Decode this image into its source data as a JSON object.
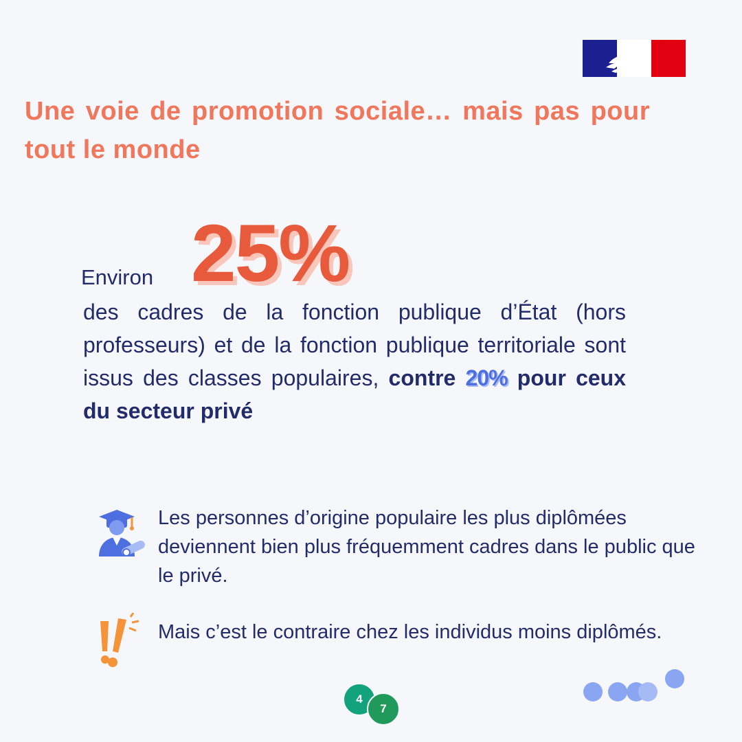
{
  "title": "Une voie de promotion sociale… mais pas pour tout le monde",
  "stat": {
    "prefix": "Environ",
    "big_value": "25%",
    "body": "des cadres de la fonction publique d’État (hors professeurs) et de la fonction publique territoriale sont issus des classes populaires,",
    "contrast_prefix": "contre",
    "contrast_value": "20%",
    "contrast_suffix": "pour ceux du secteur privé"
  },
  "bullets": [
    {
      "icon": "graduate-icon",
      "text": "Les personnes d’origine populaire les plus diplômées deviennent bien plus fréquemment cadres dans le public que le privé."
    },
    {
      "icon": "exclamation-icon",
      "text": "Mais c’est le contraire chez les individus moins diplômés."
    }
  ],
  "pagination": {
    "current": "4",
    "total": "7"
  },
  "colors": {
    "background": "#f6f7fb",
    "title": "#f0765c",
    "highlight_red": "#e85a3c",
    "text_navy": "#232c6b",
    "accent_blue": "#4d6fe0",
    "accent_orange": "#f5933a",
    "page_green": "#12a37c"
  }
}
